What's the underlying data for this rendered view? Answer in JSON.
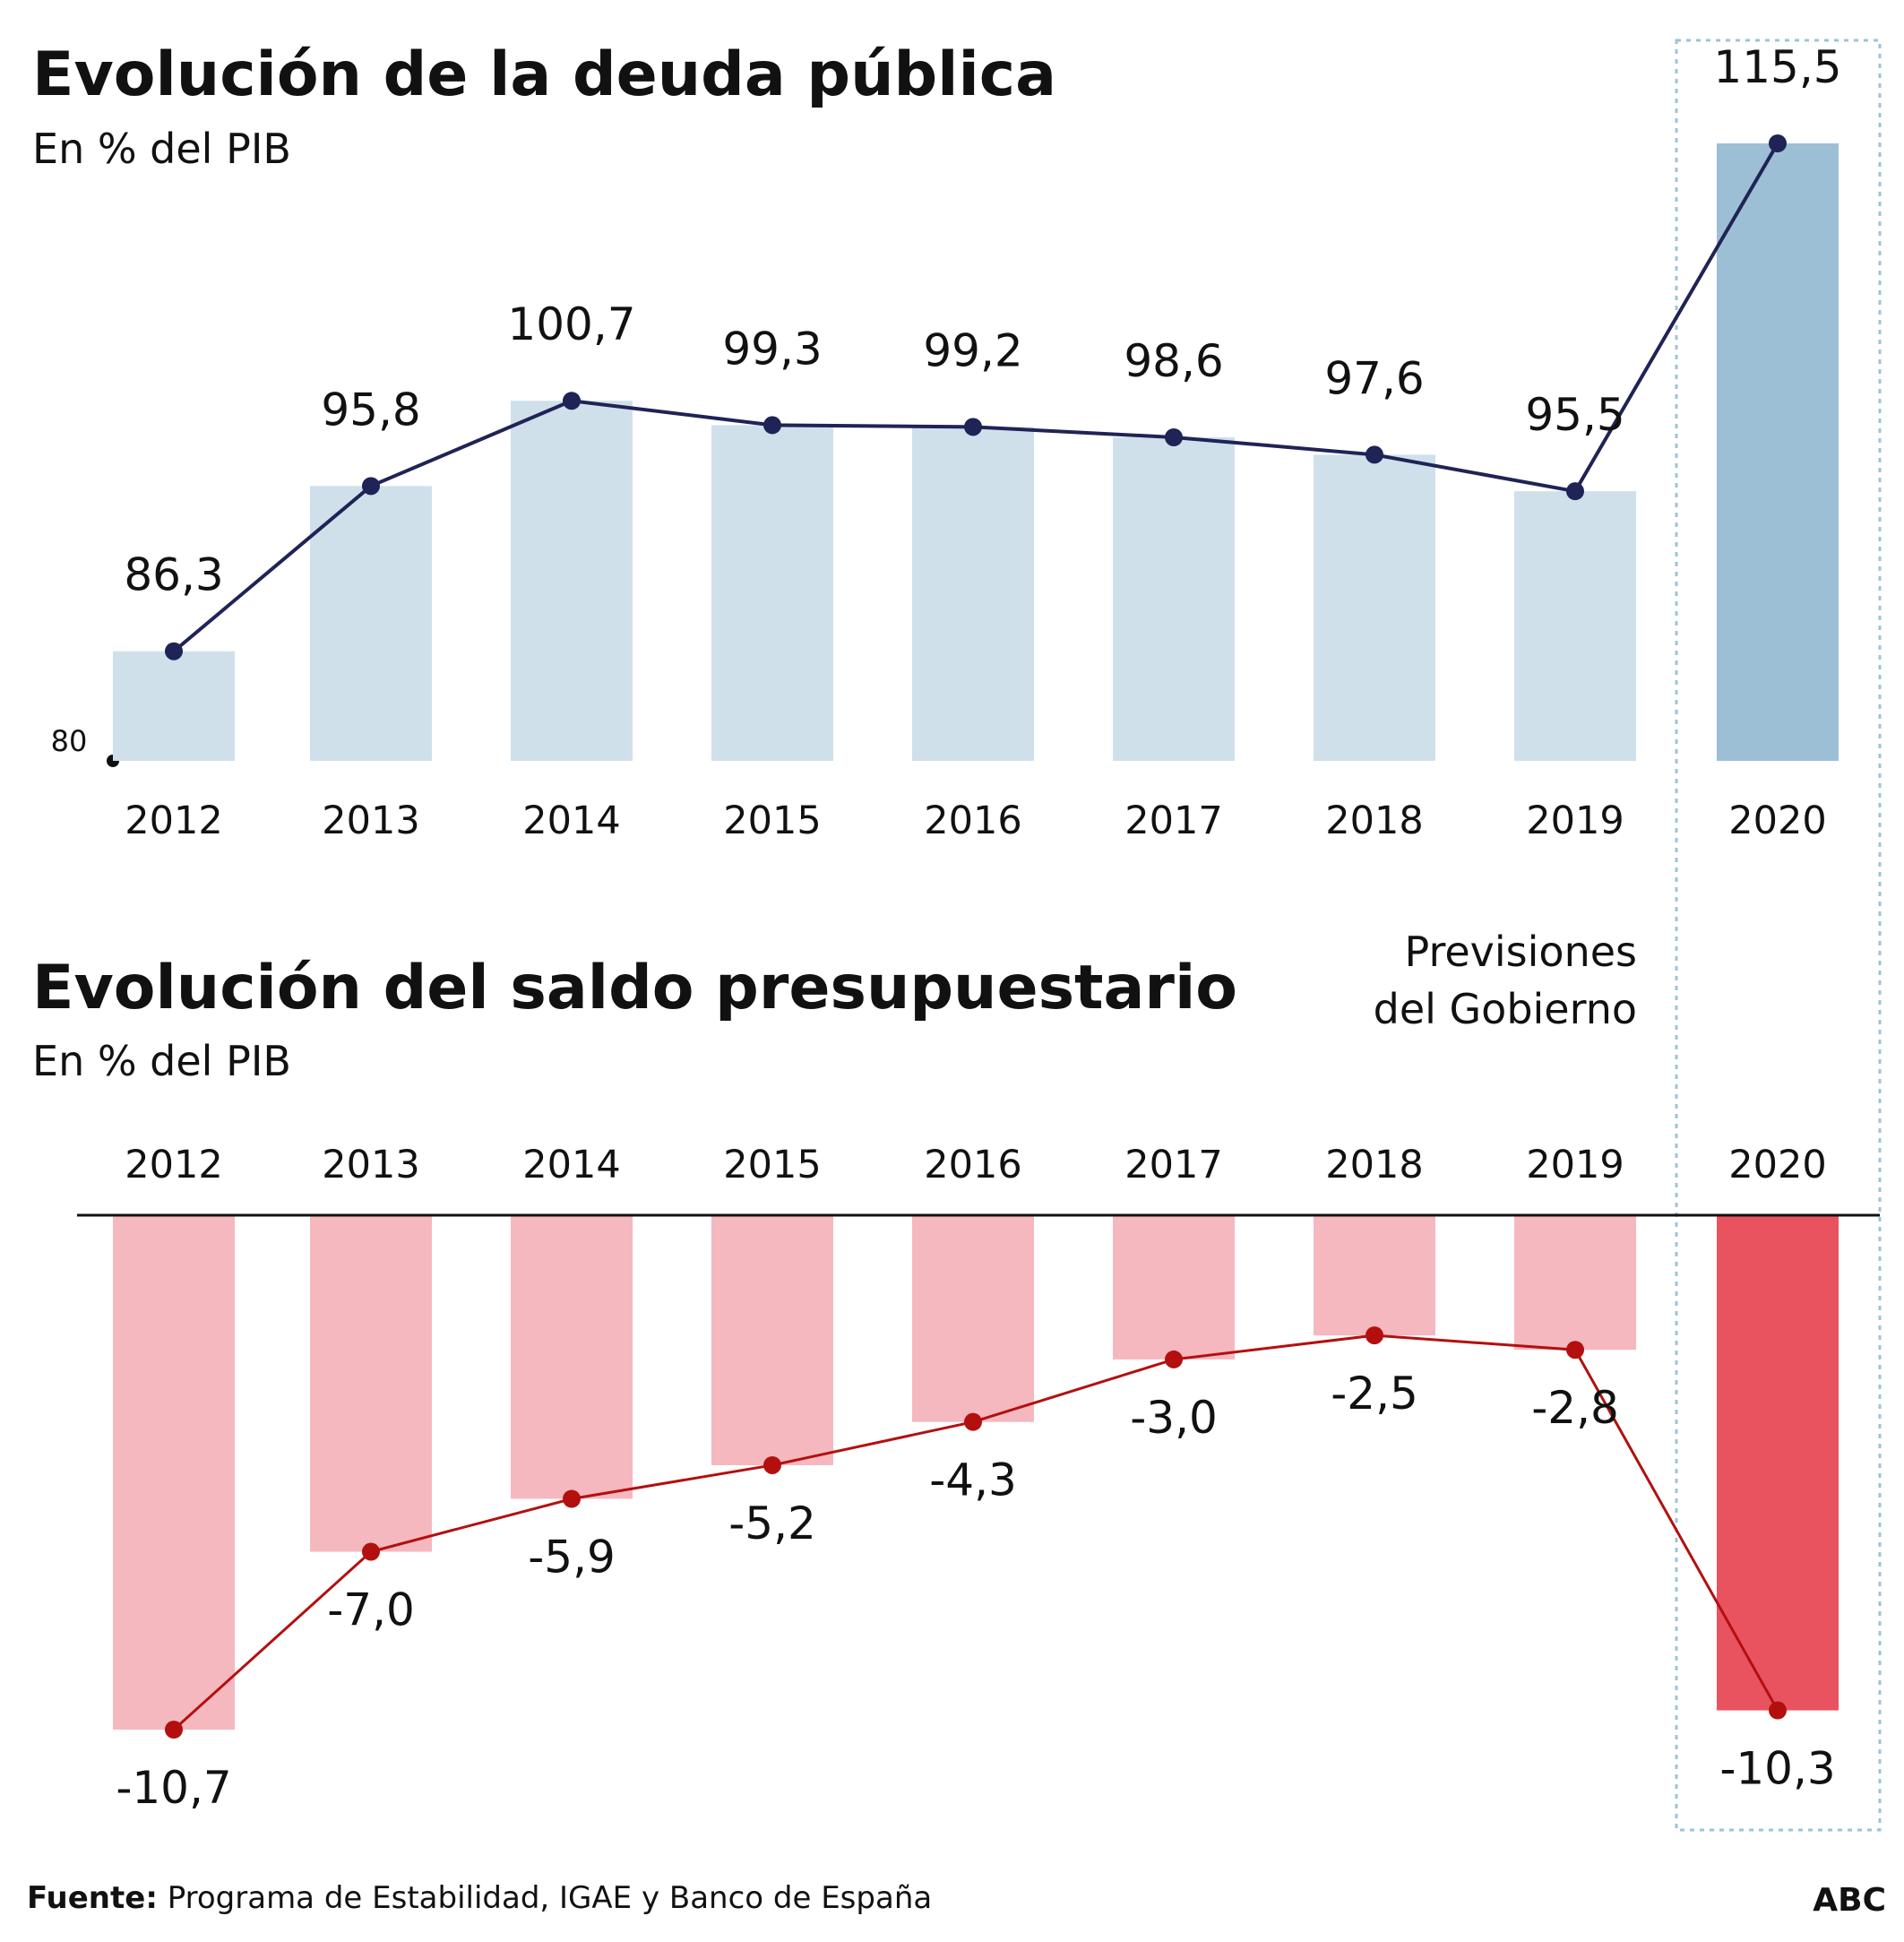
{
  "debt": {
    "title": "Evolución de la deuda pública",
    "subtitle": "En % del PIB",
    "axis_min_label": "80"
  },
  "balance": {
    "title": "Evolución del saldo presupuestario",
    "subtitle": "En % del PIB"
  },
  "forecast_note": {
    "line1": "Previsiones",
    "line2": "del Gobierno"
  },
  "footer": {
    "source_label": "Fuente:",
    "source_text": " Programa de Estabilidad, IGAE y Banco de España",
    "brand": "ABC"
  },
  "colors": {
    "debt_bar": "#cfe0eb",
    "debt_bar_forecast": "#9dbfd6",
    "debt_line": "#1f2356",
    "balance_bar": "#f5b8bf",
    "balance_bar_forecast": "#e9535f",
    "balance_line": "#b40f0f",
    "forecast_box": "#9cc3d8"
  },
  "chart_data": [
    {
      "type": "bar",
      "title": "Evolución de la deuda pública",
      "subtitle": "En % del PIB",
      "categories": [
        "2012",
        "2013",
        "2014",
        "2015",
        "2016",
        "2017",
        "2018",
        "2019",
        "2020"
      ],
      "values": [
        86.3,
        95.8,
        100.7,
        99.3,
        99.2,
        98.6,
        97.6,
        95.5,
        115.5
      ],
      "value_labels": [
        "86,3",
        "95,8",
        "100,7",
        "99,3",
        "99,2",
        "98,6",
        "97,6",
        "95,5",
        "115,5"
      ],
      "ylim": [
        80,
        115.5
      ],
      "forecast_category": "2020",
      "overlay": "line with markers",
      "grid": false
    },
    {
      "type": "bar",
      "title": "Evolución del saldo presupuestario",
      "subtitle": "En % del PIB",
      "categories": [
        "2012",
        "2013",
        "2014",
        "2015",
        "2016",
        "2017",
        "2018",
        "2019",
        "2020"
      ],
      "values": [
        -10.7,
        -7.0,
        -5.9,
        -5.2,
        -4.3,
        -3.0,
        -2.5,
        -2.8,
        -10.3
      ],
      "value_labels": [
        "-10,7",
        "-7,0",
        "-5,9",
        "-5,2",
        "-4,3",
        "-3,0",
        "-2,5",
        "-2,8",
        "-10,3"
      ],
      "ylim": [
        -10.7,
        0
      ],
      "forecast_category": "2020",
      "overlay": "line with markers",
      "grid": false
    }
  ]
}
